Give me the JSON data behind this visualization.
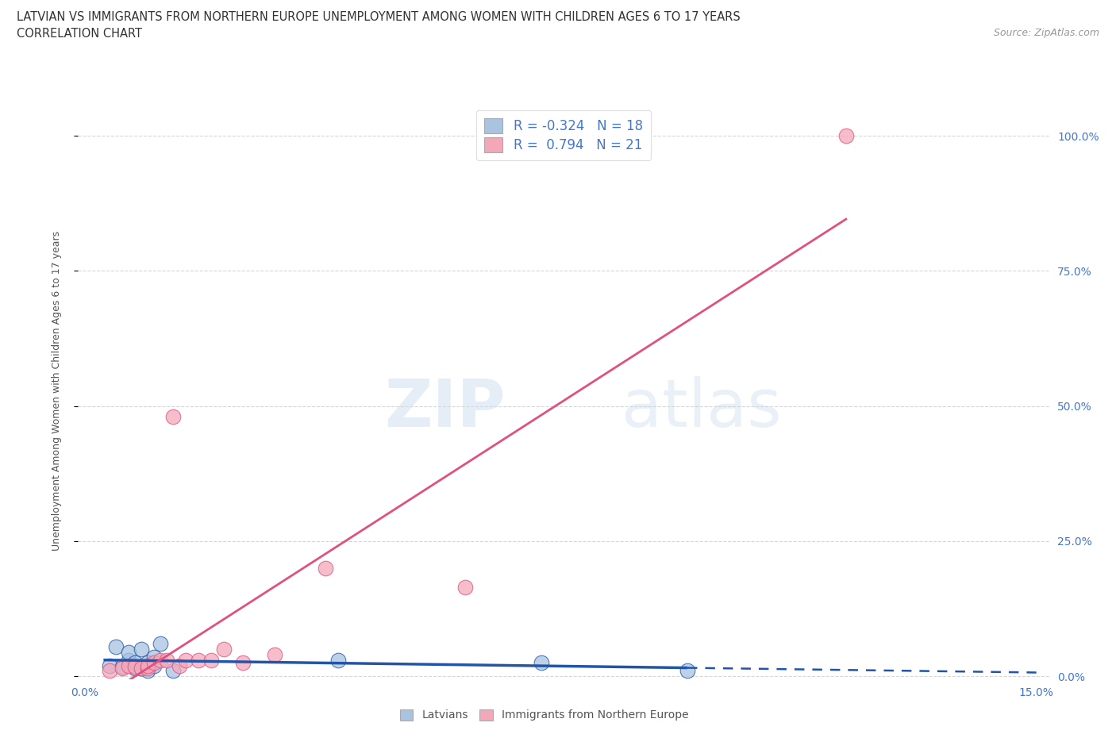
{
  "title_line1": "LATVIAN VS IMMIGRANTS FROM NORTHERN EUROPE UNEMPLOYMENT AMONG WOMEN WITH CHILDREN AGES 6 TO 17 YEARS",
  "title_line2": "CORRELATION CHART",
  "source": "Source: ZipAtlas.com",
  "ylabel": "Unemployment Among Women with Children Ages 6 to 17 years",
  "xlim": [
    -0.001,
    0.152
  ],
  "ylim": [
    -0.005,
    1.06
  ],
  "xticks": [
    0.0,
    0.03,
    0.06,
    0.09,
    0.12,
    0.15
  ],
  "xtick_labels": [
    "0.0%",
    "",
    "",
    "",
    "",
    "15.0%"
  ],
  "ytick_labels_right": [
    "0.0%",
    "25.0%",
    "50.0%",
    "75.0%",
    "100.0%"
  ],
  "yticks_right": [
    0.0,
    0.25,
    0.5,
    0.75,
    1.0
  ],
  "grid_color": "#cccccc",
  "background_color": "#ffffff",
  "latvians_color": "#a8c4e0",
  "immigrants_color": "#f4a7b9",
  "latvians_line_color": "#2255aa",
  "immigrants_line_color": "#e05080",
  "latvians_R": -0.324,
  "latvians_N": 18,
  "immigrants_R": 0.794,
  "immigrants_N": 21,
  "latvians_x": [
    0.004,
    0.005,
    0.006,
    0.007,
    0.007,
    0.008,
    0.008,
    0.009,
    0.009,
    0.01,
    0.01,
    0.011,
    0.011,
    0.012,
    0.014,
    0.04,
    0.072,
    0.095
  ],
  "latvians_y": [
    0.02,
    0.055,
    0.018,
    0.03,
    0.045,
    0.015,
    0.025,
    0.015,
    0.05,
    0.01,
    0.025,
    0.02,
    0.035,
    0.06,
    0.01,
    0.03,
    0.025,
    0.01
  ],
  "immigrants_x": [
    0.004,
    0.006,
    0.007,
    0.008,
    0.009,
    0.01,
    0.01,
    0.011,
    0.012,
    0.013,
    0.014,
    0.015,
    0.016,
    0.018,
    0.02,
    0.022,
    0.025,
    0.03,
    0.038,
    0.06,
    0.12
  ],
  "immigrants_y": [
    0.01,
    0.015,
    0.02,
    0.018,
    0.015,
    0.015,
    0.02,
    0.025,
    0.03,
    0.03,
    0.48,
    0.02,
    0.03,
    0.03,
    0.03,
    0.05,
    0.025,
    0.04,
    0.2,
    0.165,
    1.0
  ],
  "lat_line_x_start": 0.003,
  "lat_line_x_solid_end": 0.095,
  "lat_line_x_dashed_end": 0.15,
  "imm_line_x_start": 0.003,
  "imm_line_x_end": 0.12
}
